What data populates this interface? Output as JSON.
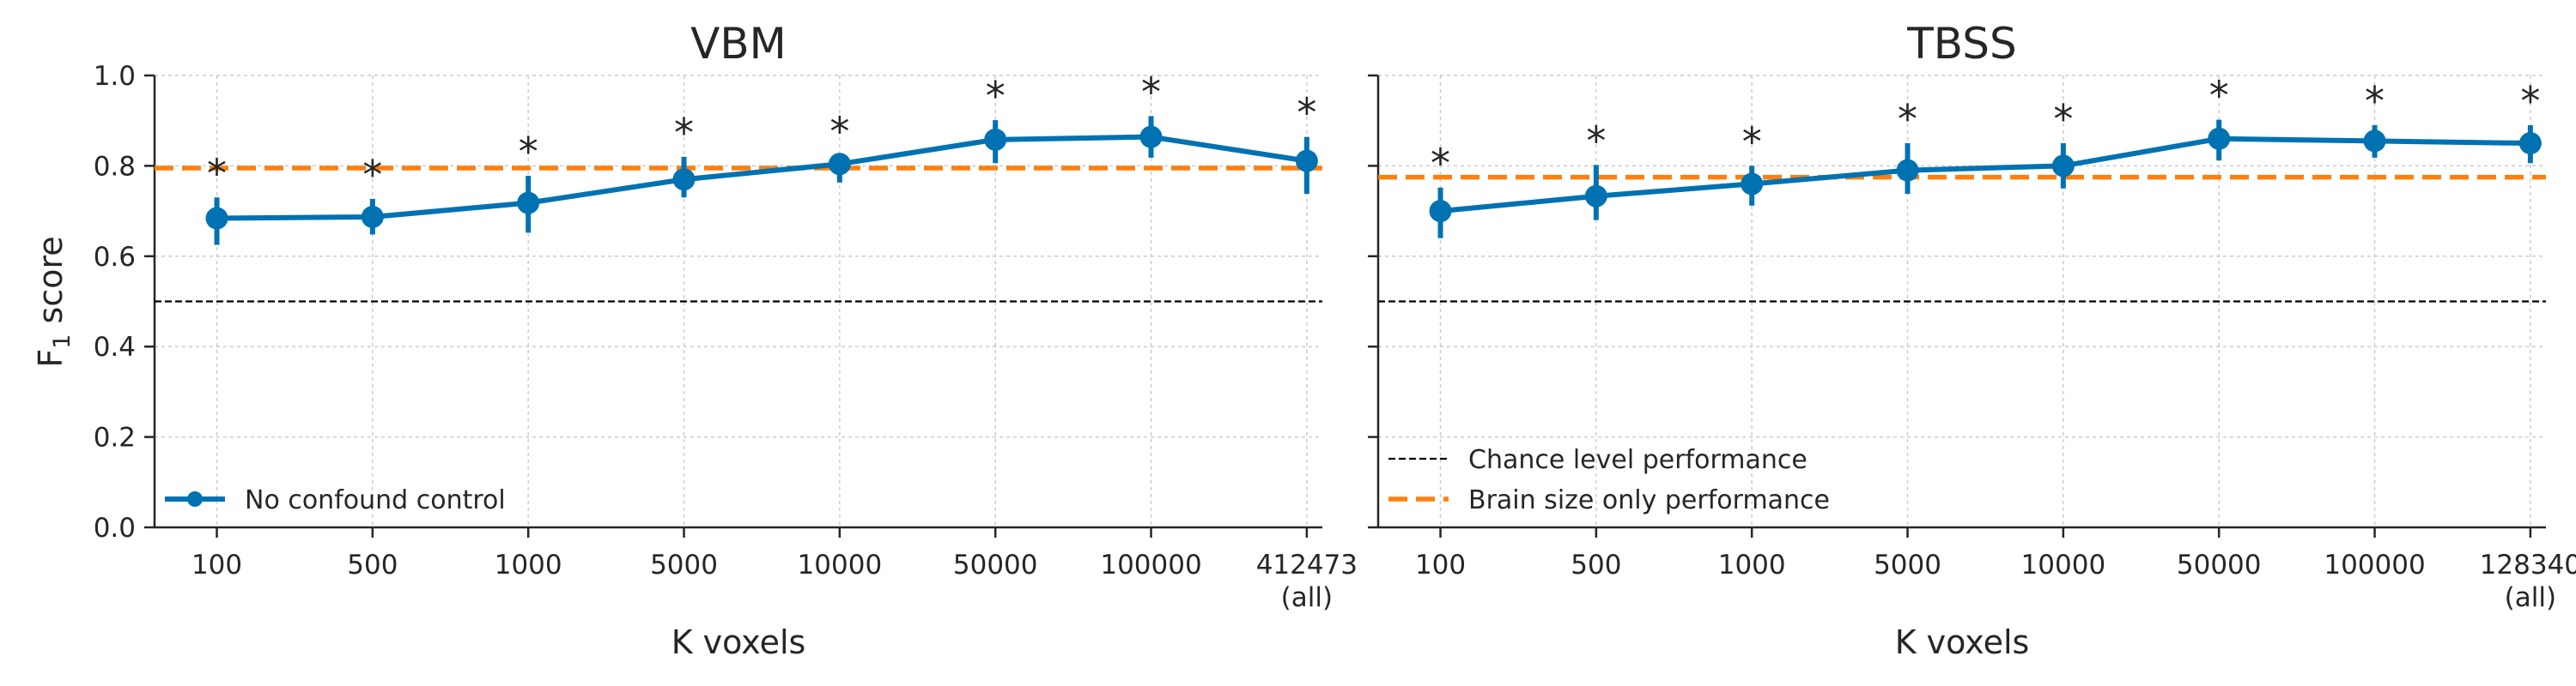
{
  "chart_data": [
    {
      "type": "line",
      "title": "VBM",
      "xlabel": "K voxels",
      "ylabel": "F",
      "ylabel_subscript": "1",
      "ylabel_suffix": " score",
      "ylim": [
        0,
        1
      ],
      "yticks": [
        "0.0",
        "0.2",
        "0.4",
        "0.6",
        "0.8",
        "1.0"
      ],
      "categories": [
        "100",
        "500",
        "1000",
        "5000",
        "10000",
        "50000",
        "100000",
        "412473"
      ],
      "last_category_note": "(all)",
      "grid": true,
      "series": [
        {
          "name": "No confound control",
          "values": [
            0.684,
            0.687,
            0.718,
            0.77,
            0.804,
            0.858,
            0.864,
            0.811
          ],
          "err_low": [
            0.625,
            0.648,
            0.652,
            0.73,
            0.763,
            0.806,
            0.818,
            0.738
          ],
          "err_high": [
            0.73,
            0.727,
            0.778,
            0.82,
            0.823,
            0.901,
            0.91,
            0.864
          ],
          "significance": [
            "*",
            "*",
            "*",
            "*",
            "*",
            "*",
            "*",
            "*"
          ]
        }
      ],
      "reference_lines": [
        {
          "name": "Chance level performance",
          "y": 0.5
        },
        {
          "name": "Brain size only performance",
          "y": 0.795
        }
      ],
      "legend": {
        "placement": "lower-left",
        "entries": [
          "No confound control"
        ]
      }
    },
    {
      "type": "line",
      "title": "TBSS",
      "xlabel": "K voxels",
      "ylim": [
        0,
        1
      ],
      "categories": [
        "100",
        "500",
        "1000",
        "5000",
        "10000",
        "50000",
        "100000",
        "128340"
      ],
      "last_category_note": "(all)",
      "grid": true,
      "series": [
        {
          "name": "No confound control",
          "values": [
            0.7,
            0.733,
            0.76,
            0.79,
            0.8,
            0.86,
            0.855,
            0.85
          ],
          "err_low": [
            0.64,
            0.68,
            0.712,
            0.738,
            0.75,
            0.812,
            0.818,
            0.806
          ],
          "err_high": [
            0.752,
            0.802,
            0.8,
            0.85,
            0.85,
            0.902,
            0.89,
            0.89
          ],
          "significance": [
            "*",
            "*",
            "*",
            "*",
            "*",
            "*",
            "*",
            "*"
          ]
        }
      ],
      "reference_lines": [
        {
          "name": "Chance level performance",
          "y": 0.5
        },
        {
          "name": "Brain size only performance",
          "y": 0.775
        }
      ],
      "legend": {
        "placement": "lower-left",
        "entries": [
          "Chance level performance",
          "Brain size only performance"
        ]
      }
    }
  ],
  "colors": {
    "series": "#0072b2",
    "brain_size": "#ff7f0e",
    "chance": "#000000",
    "grid": "#cccccc",
    "axis": "#262626"
  }
}
